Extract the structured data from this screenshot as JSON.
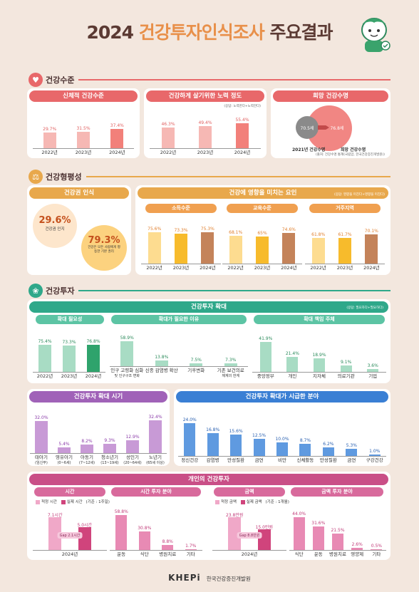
{
  "title": {
    "year": "2024",
    "accent": "건강투자",
    "rest": "인식조사",
    "suffix": "주요결과"
  },
  "colors": {
    "health": "#e8686a",
    "equity": "#e8a84c",
    "invest": "#2fa88a",
    "invest_timing": "#a062b8",
    "invest_field": "#3a7fd4",
    "personal": "#c94f87"
  },
  "sections": {
    "health": "건강수준",
    "equity": "건강형평성",
    "invest": "건강투자"
  },
  "health": {
    "p1": {
      "title": "신체적 건강수준",
      "note": "(응답: 건강하다+건강하다)"
    },
    "p2": {
      "title": "건강하게 살기위한 노력 정도",
      "note": "(응답: 노력한다+노력한다)"
    },
    "p3": {
      "title": "희망 건강수명",
      "a": "70.5세",
      "b": "76.8세",
      "la": "2021년 건강수명",
      "lb": "희망 건강수명",
      "note": "(출처: 건강수명 통계(국립암, 한국건강증진개발원))"
    }
  },
  "equity": {
    "p1": {
      "title": "건강권 인식",
      "v1": "29.6%",
      "l1": "건강권 인지",
      "v2": "79.3%",
      "l2": "건강은 모든 사람에게 평등한 기본 권리"
    },
    "p2": {
      "title": "건강에 영향을 미치는 요인",
      "note": "(응답: 영향을 미친다+영향을 미친다)",
      "s1": "소득수준",
      "s2": "교육수준",
      "s3": "거주지역"
    }
  },
  "invest": {
    "main": {
      "title": "건강투자 확대",
      "note": "(응답: 필요하다+필요하다)",
      "s1": "확대 필요성",
      "s2": "확대가 필요한 이유",
      "s3": "확대 책임 주체"
    },
    "timing": {
      "title": "건강투자 확대 시기"
    },
    "field": {
      "title": "건강투자 확대가 시급한 분야"
    },
    "personal": {
      "title": "개인의 건강투자",
      "s1": "시간",
      "s2": "시간 투자 분야",
      "s3": "금액",
      "s4": "금액 투자 분야",
      "leg1a": "적정 시간",
      "leg1b": "실제 시간",
      "unit1": "(기준 : 1주일)",
      "leg2a": "적정 금액",
      "leg2b": "실제 금액",
      "unit2": "(기준 : 1개월)",
      "gap1": "Gap 2.1시간",
      "gap2": "Gap 8.8만원",
      "year": "2024년"
    }
  },
  "footer": {
    "logo": "KHEPi",
    "org": "한국건강증진개발원"
  },
  "chart_data": [
    {
      "type": "bar",
      "title": "신체적 건강수준",
      "categories": [
        "2022년",
        "2023년",
        "2024년"
      ],
      "values": [
        29.7,
        31.5,
        37.4
      ],
      "labels": [
        "29.7%",
        "31.5%",
        "37.4%"
      ]
    },
    {
      "type": "bar",
      "title": "건강하게 살기위한 노력 정도",
      "categories": [
        "2022년",
        "2023년",
        "2024년"
      ],
      "values": [
        46.3,
        49.4,
        55.4
      ],
      "labels": [
        "46.3%",
        "49.4%",
        "55.4%"
      ]
    },
    {
      "type": "bar",
      "title": "소득수준",
      "categories": [
        "2022년",
        "2023년",
        "2024년"
      ],
      "values": [
        75.6,
        73.3,
        75.3
      ],
      "labels": [
        "75.6%",
        "73.3%",
        "75.3%"
      ]
    },
    {
      "type": "bar",
      "title": "교육수준",
      "categories": [
        "2022년",
        "2023년",
        "2024년"
      ],
      "values": [
        68.1,
        65,
        74.6
      ],
      "labels": [
        "68.1%",
        "65%",
        "74.6%"
      ]
    },
    {
      "type": "bar",
      "title": "거주지역",
      "categories": [
        "2022년",
        "2023년",
        "2024년"
      ],
      "values": [
        61.8,
        61.7,
        70.1
      ],
      "labels": [
        "61.8%",
        "61.7%",
        "70.1%"
      ]
    },
    {
      "type": "bar",
      "title": "확대 필요성",
      "categories": [
        "2022년",
        "2023년",
        "2024년"
      ],
      "values": [
        75.4,
        73.3,
        76.8
      ],
      "labels": [
        "75.4%",
        "73.3%",
        "76.8%"
      ]
    },
    {
      "type": "bar",
      "title": "확대가 필요한 이유",
      "categories": [
        "인구 고령화 심화\n및 인구구조 변화",
        "신종 감염병 확산",
        "기후변화",
        "기존 보건의료\n체계의 한계"
      ],
      "values": [
        58.9,
        13.8,
        7.5,
        7.3
      ],
      "labels": [
        "58.9%",
        "13.8%",
        "7.5%",
        "7.3%"
      ]
    },
    {
      "type": "bar",
      "title": "확대 책임 주체",
      "categories": [
        "중앙정부",
        "개인",
        "지자체",
        "의료기관",
        "기업"
      ],
      "values": [
        41.9,
        21.4,
        18.9,
        9.1,
        3.6
      ],
      "labels": [
        "41.9%",
        "21.4%",
        "18.9%",
        "9.1%",
        "3.6%"
      ]
    },
    {
      "type": "bar",
      "title": "건강투자 확대 시기",
      "categories": [
        "태아기\n(임신부)",
        "영유아기\n(0~6세)",
        "아동기\n(7~12세)",
        "청소년기\n(13~19세)",
        "성인기\n(20~64세)",
        "노년기\n(65세 이상)"
      ],
      "values": [
        32.0,
        5.4,
        8.2,
        9.3,
        12.9,
        32.4
      ],
      "labels": [
        "32.0%",
        "5.4%",
        "8.2%",
        "9.3%",
        "12.9%",
        "32.4%"
      ]
    },
    {
      "type": "bar",
      "title": "건강투자 확대가 시급한 분야",
      "categories": [
        "정신건강",
        "감염병",
        "만성질환",
        "금연",
        "비만",
        "신체활동",
        "만성질환",
        "금연",
        "구강건강"
      ],
      "values": [
        24.0,
        16.8,
        15.6,
        12.5,
        10.0,
        8.7,
        6.2,
        5.3,
        1.0
      ],
      "labels": [
        "24.0%",
        "16.8%",
        "15.6%",
        "12.5%",
        "10.0%",
        "8.7%",
        "6.2%",
        "5.3%",
        "1.0%"
      ]
    },
    {
      "type": "bar",
      "title": "시간",
      "categories": [
        "2024년"
      ],
      "series": [
        {
          "name": "적정 시간",
          "values": [
            7.1
          ],
          "labels": [
            "7.1시간"
          ]
        },
        {
          "name": "실제 시간",
          "values": [
            5.0
          ],
          "labels": [
            "5.0시간"
          ]
        }
      ]
    },
    {
      "type": "bar",
      "title": "시간 투자 분야",
      "categories": [
        "운동",
        "식단",
        "병원치료",
        "기타"
      ],
      "values": [
        58.8,
        30.8,
        8.8,
        1.7
      ],
      "labels": [
        "58.8%",
        "30.8%",
        "8.8%",
        "1.7%"
      ]
    },
    {
      "type": "bar",
      "title": "금액",
      "categories": [
        "2024년"
      ],
      "series": [
        {
          "name": "적정 금액",
          "values": [
            23.8
          ],
          "labels": [
            "23.8만원"
          ]
        },
        {
          "name": "실제 금액",
          "values": [
            15.0
          ],
          "labels": [
            "15.0만원"
          ]
        }
      ]
    },
    {
      "type": "bar",
      "title": "금액 투자 분야",
      "categories": [
        "식단",
        "운동",
        "병원치료",
        "영양제",
        "기타"
      ],
      "values": [
        44.0,
        31.6,
        21.5,
        2.6,
        0.5
      ],
      "labels": [
        "44.0%",
        "31.6%",
        "21.5%",
        "2.6%",
        "0.5%"
      ]
    }
  ]
}
